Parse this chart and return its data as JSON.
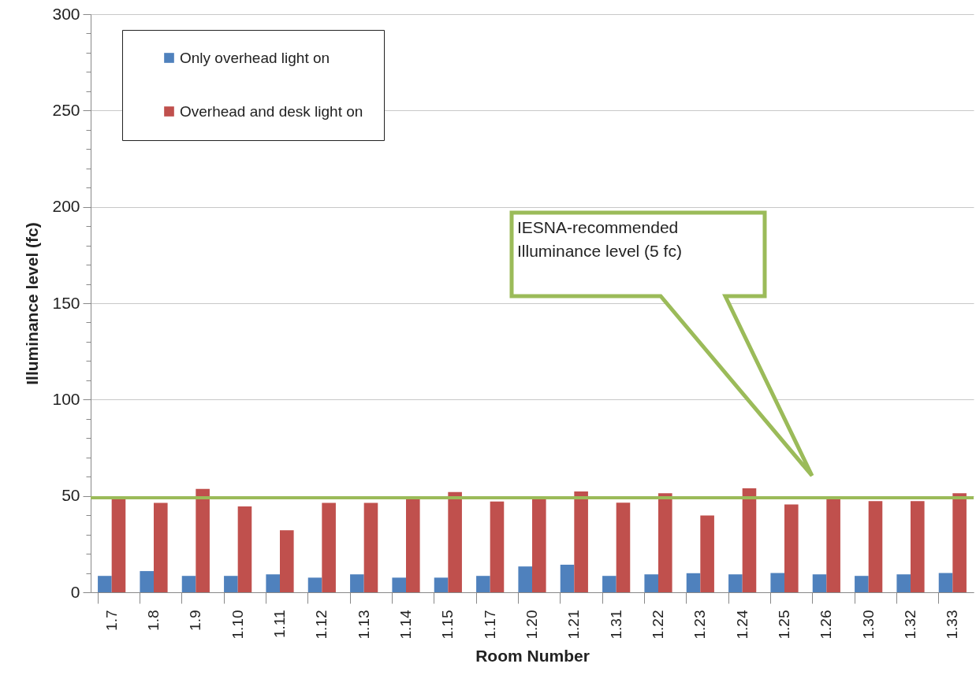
{
  "chart_data": {
    "type": "bar",
    "xlabel": "Room Number",
    "ylabel": "Illuminance level (fc)",
    "categories": [
      "1.7",
      "1.8",
      "1.9",
      "1.10",
      "1.11",
      "1.12",
      "1.13",
      "1.14",
      "1.15",
      "1.17",
      "1.20",
      "1.21",
      "1.31",
      "1.22",
      "1.23",
      "1.24",
      "1.25",
      "1.26",
      "1.30",
      "1.32",
      "1.33"
    ],
    "series": [
      {
        "name": "Only overhead light on",
        "color": "#4f81bd",
        "values": [
          8.5,
          11,
          8.5,
          8.5,
          9.3,
          7.6,
          9.3,
          7.6,
          7.6,
          8.5,
          13.4,
          14.3,
          8.5,
          9.3,
          9.9,
          9.3,
          10,
          9.3,
          8.5,
          9.3,
          10
        ]
      },
      {
        "name": "Overhead and desk light on",
        "color": "#c0504d",
        "values": [
          49,
          46.4,
          53.6,
          44.5,
          32.2,
          46.4,
          46.4,
          49,
          52,
          47.1,
          49,
          52.3,
          46.5,
          51.4,
          39.8,
          54,
          45.6,
          49,
          47.3,
          47.3,
          51.4
        ]
      }
    ],
    "ylim": [
      0,
      300
    ],
    "yticks": [
      0,
      {
        "value": 10,
        "label": null
      },
      {
        "value": 20,
        "label": null
      },
      {
        "value": 30,
        "label": null
      },
      {
        "value": 40,
        "label": null
      },
      50,
      {
        "value": 60,
        "label": null
      },
      {
        "value": 70,
        "label": null
      },
      {
        "value": 80,
        "label": null
      },
      {
        "value": 90,
        "label": null
      },
      100,
      {
        "value": 110,
        "label": null
      },
      {
        "value": 120,
        "label": null
      },
      {
        "value": 130,
        "label": null
      },
      {
        "value": 140,
        "label": null
      },
      150,
      {
        "value": 160,
        "label": null
      },
      {
        "value": 170,
        "label": null
      },
      {
        "value": 180,
        "label": null
      },
      {
        "value": 190,
        "label": null
      },
      200,
      {
        "value": 210,
        "label": null
      },
      {
        "value": 220,
        "label": null
      },
      {
        "value": 230,
        "label": null
      },
      {
        "value": 240,
        "label": null
      },
      250,
      {
        "value": 260,
        "label": null
      },
      {
        "value": 270,
        "label": null
      },
      {
        "value": 280,
        "label": null
      },
      {
        "value": 290,
        "label": null
      },
      300
    ],
    "ref_lines": [
      {
        "axis": "y",
        "value": 49,
        "color": "#9bbb59"
      }
    ],
    "annotations": [
      "IESNA-recommended Illuminance level (5 fc)"
    ],
    "grid": "y",
    "legend": "top left"
  }
}
